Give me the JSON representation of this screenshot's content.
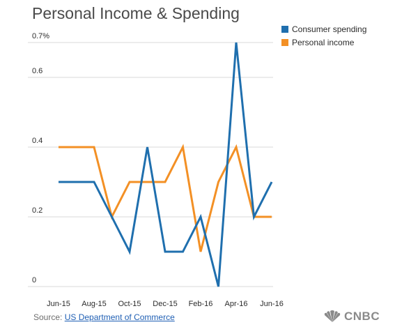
{
  "chart_data": {
    "type": "line",
    "title": "Personal Income & Spending",
    "xlabel": "",
    "ylabel": "",
    "x": [
      "Jun-15",
      "Jul-15",
      "Aug-15",
      "Sep-15",
      "Oct-15",
      "Nov-15",
      "Dec-15",
      "Jan-16",
      "Feb-16",
      "Mar-16",
      "Apr-16",
      "May-16",
      "Jun-16"
    ],
    "x_tick_labels": [
      "Jun-15",
      "Aug-15",
      "Oct-15",
      "Dec-15",
      "Feb-16",
      "Apr-16",
      "Jun-16"
    ],
    "y_ticks": [
      {
        "value": 0,
        "label": "0"
      },
      {
        "value": 0.2,
        "label": "0.2"
      },
      {
        "value": 0.4,
        "label": "0.4"
      },
      {
        "value": 0.6,
        "label": "0.6"
      },
      {
        "value": 0.7,
        "label": "0.7%"
      }
    ],
    "ylim": [
      0,
      0.7
    ],
    "grid": true,
    "legend_position": "top-right",
    "series": [
      {
        "name": "Consumer spending",
        "color": "#1f6fae",
        "values": [
          0.3,
          0.3,
          0.3,
          0.2,
          0.1,
          0.4,
          0.1,
          0.1,
          0.2,
          0.0,
          0.7,
          0.2,
          0.3
        ]
      },
      {
        "name": "Personal income",
        "color": "#f39025",
        "values": [
          0.4,
          0.4,
          0.4,
          0.2,
          0.3,
          0.3,
          0.3,
          0.4,
          0.1,
          0.3,
          0.4,
          0.2,
          0.2
        ]
      }
    ]
  },
  "source": {
    "prefix": "Source: ",
    "link_text": "US Department of Commerce"
  },
  "brand": {
    "name": "CNBC",
    "icon": "peacock-icon"
  }
}
